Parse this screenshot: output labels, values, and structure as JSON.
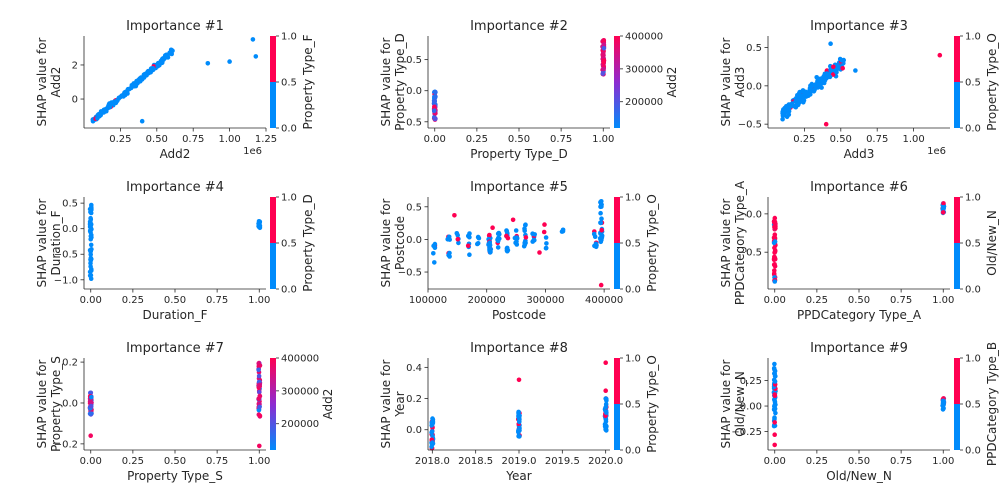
{
  "colors": {
    "low": "#008bfb",
    "mid": "#8e2bd0",
    "high": "#ff0052"
  },
  "chart_data": [
    {
      "type": "scatter",
      "title": "Importance #1",
      "xlabel": "Add2",
      "ylabel": [
        "SHAP value for",
        "Add2"
      ],
      "xlim": [
        0,
        1250000
      ],
      "ylim": [
        -1.7,
        3.7
      ],
      "xticks": [
        250000,
        500000,
        750000,
        1000000,
        1250000
      ],
      "xtick_labels": [
        "0.25",
        "0.50",
        "0.75",
        "1.00",
        "1.25"
      ],
      "x_offset": "1e6",
      "yticks": [
        0,
        2
      ],
      "ytick_labels": [
        "0",
        "2"
      ],
      "colorbar": {
        "label": "Property Type_F",
        "ticks": [
          0,
          0.5,
          1
        ],
        "tick_labels": [
          "0.0",
          "0.5",
          "1.0"
        ],
        "range": [
          0,
          1
        ],
        "binary": true
      },
      "points": {
        "mode": "linear",
        "x_range": [
          60000,
          620000
        ],
        "y_start": -1.3,
        "y_end": 2.9,
        "noise": 0.25,
        "n": 160,
        "high_frac": 0.05,
        "extra": [
          [
            850000,
            2.1,
            0
          ],
          [
            1000000,
            2.2,
            0
          ],
          [
            1160000,
            3.5,
            0
          ],
          [
            1180000,
            2.5,
            0
          ],
          [
            400000,
            -1.3,
            0
          ]
        ]
      }
    },
    {
      "type": "scatter",
      "title": "Importance #2",
      "xlabel": "Property Type_D",
      "ylabel": [
        "SHAP value for",
        "Property Type_D"
      ],
      "xlim": [
        -0.04,
        1.04
      ],
      "ylim": [
        -0.6,
        0.88
      ],
      "xticks": [
        0,
        0.25,
        0.5,
        0.75,
        1.0
      ],
      "xtick_labels": [
        "0.00",
        "0.25",
        "0.50",
        "0.75",
        "1.00"
      ],
      "yticks": [
        -0.5,
        0,
        0.5
      ],
      "ytick_labels": [
        "−0.5",
        "0.0",
        "0.5"
      ],
      "colorbar": {
        "label": "Add2",
        "ticks": [
          200000,
          300000,
          400000
        ],
        "tick_labels": [
          "200000",
          "300000",
          "400000"
        ],
        "range": [
          120000,
          400000
        ],
        "binary": false
      },
      "points": {
        "mode": "binary",
        "groups": [
          {
            "x": 0,
            "y_min": -0.5,
            "y_max": 0.0,
            "n": 45,
            "high_frac": 0.3
          },
          {
            "x": 1,
            "y_min": 0.25,
            "y_max": 0.82,
            "n": 45,
            "high_frac": 0.9
          }
        ]
      }
    },
    {
      "type": "scatter",
      "title": "Importance #3",
      "xlabel": "Add3",
      "ylabel": [
        "SHAP value for",
        "Add3"
      ],
      "xlim": [
        0,
        1250000
      ],
      "ylim": [
        -0.55,
        0.65
      ],
      "xticks": [
        250000,
        500000,
        750000,
        1000000
      ],
      "xtick_labels": [
        "0.25",
        "0.50",
        "0.75",
        "1.00"
      ],
      "x_offset": "1e6",
      "yticks": [
        -0.5,
        0,
        0.5
      ],
      "ytick_labels": [
        "−0.5",
        "0.0",
        "0.5"
      ],
      "colorbar": {
        "label": "Property Type_O",
        "ticks": [
          0,
          0.5,
          1
        ],
        "tick_labels": [
          "0.0",
          "0.5",
          "1.0"
        ],
        "range": [
          0,
          1
        ],
        "binary": true
      },
      "points": {
        "mode": "linear",
        "x_range": [
          100000,
          520000
        ],
        "y_start": -0.35,
        "y_end": 0.3,
        "noise": 0.14,
        "n": 190,
        "high_frac": 0.09,
        "extra": [
          [
            1180000,
            0.4,
            1
          ],
          [
            400000,
            -0.5,
            1
          ],
          [
            600000,
            0.2,
            0
          ],
          [
            430000,
            0.55,
            0
          ]
        ]
      }
    },
    {
      "type": "scatter",
      "title": "Importance #4",
      "xlabel": "Duration_F",
      "ylabel": [
        "SHAP value for",
        "Duration_F"
      ],
      "xlim": [
        -0.04,
        1.04
      ],
      "ylim": [
        -1.18,
        0.62
      ],
      "xticks": [
        0,
        0.25,
        0.5,
        0.75,
        1.0
      ],
      "xtick_labels": [
        "0.00",
        "0.25",
        "0.50",
        "0.75",
        "1.00"
      ],
      "yticks": [
        -1.0,
        -0.5,
        0,
        0.5
      ],
      "ytick_labels": [
        "−1.0",
        "−0.5",
        "0.0",
        "0.5"
      ],
      "colorbar": {
        "label": "Property Type_D",
        "ticks": [
          0,
          0.5,
          1
        ],
        "tick_labels": [
          "0.0",
          "0.5",
          "1.0"
        ],
        "range": [
          0,
          1
        ],
        "binary": true
      },
      "points": {
        "mode": "binary",
        "groups": [
          {
            "x": 0,
            "y_min": -1.1,
            "y_max": 0.52,
            "n": 45,
            "high_frac": 0.0
          },
          {
            "x": 1,
            "y_min": 0.0,
            "y_max": 0.15,
            "n": 18,
            "high_frac": 0.0
          }
        ]
      }
    },
    {
      "type": "scatter",
      "title": "Importance #5",
      "xlabel": "Postcode",
      "ylabel": [
        "SHAP value for",
        "Postcode"
      ],
      "xlim": [
        100000,
        410000
      ],
      "ylim": [
        -0.76,
        0.65
      ],
      "xticks": [
        100000,
        200000,
        300000,
        400000
      ],
      "xtick_labels": [
        "100000",
        "200000",
        "300000",
        "400000"
      ],
      "yticks": [
        -0.5,
        0,
        0.5
      ],
      "ytick_labels": [
        "−0.5",
        "0.0",
        "0.5"
      ],
      "colorbar": {
        "label": "Property Type_O",
        "ticks": [
          0,
          0.5,
          1
        ],
        "tick_labels": [
          "0.0",
          "0.5",
          "1.0"
        ],
        "range": [
          0,
          1
        ],
        "binary": true
      },
      "points": {
        "mode": "clusters",
        "groups": [
          {
            "x": 110000,
            "y_min": -0.4,
            "y_max": -0.05,
            "n": 6
          },
          {
            "x": 135000,
            "y_min": -0.3,
            "y_max": 0.05,
            "n": 8
          },
          {
            "x": 150000,
            "y_min": -0.1,
            "y_max": 0.1,
            "n": 5
          },
          {
            "x": 170000,
            "y_min": -0.25,
            "y_max": 0.1,
            "n": 8
          },
          {
            "x": 185000,
            "y_min": -0.1,
            "y_max": 0.1,
            "n": 5
          },
          {
            "x": 205000,
            "y_min": -0.2,
            "y_max": 0.08,
            "n": 22
          },
          {
            "x": 220000,
            "y_min": -0.15,
            "y_max": 0.1,
            "n": 10
          },
          {
            "x": 235000,
            "y_min": -0.2,
            "y_max": 0.18,
            "n": 12
          },
          {
            "x": 250000,
            "y_min": -0.1,
            "y_max": 0.15,
            "n": 10
          },
          {
            "x": 265000,
            "y_min": -0.2,
            "y_max": 0.25,
            "n": 12
          },
          {
            "x": 280000,
            "y_min": -0.05,
            "y_max": 0.1,
            "n": 8
          },
          {
            "x": 300000,
            "y_min": -0.15,
            "y_max": 0.25,
            "n": 6
          },
          {
            "x": 330000,
            "y_min": 0.05,
            "y_max": 0.3,
            "n": 3
          },
          {
            "x": 385000,
            "y_min": -0.15,
            "y_max": 0.15,
            "n": 8
          },
          {
            "x": 395000,
            "y_min": -0.1,
            "y_max": 0.6,
            "n": 25
          }
        ],
        "high_frac": 0.12,
        "extra": [
          [
            145000,
            0.37,
            1
          ],
          [
            290000,
            -0.2,
            1
          ],
          [
            395000,
            -0.7,
            1
          ],
          [
            245000,
            0.3,
            1
          ],
          [
            210000,
            0.18,
            1
          ]
        ]
      }
    },
    {
      "type": "scatter",
      "title": "Importance #6",
      "xlabel": "PPDCategory Type_A",
      "ylabel": [
        "SHAP value for",
        "PPDCategory Type_A"
      ],
      "xlim": [
        -0.04,
        1.04
      ],
      "ylim": [
        -0.98,
        0.22
      ],
      "xticks": [
        0,
        0.25,
        0.5,
        0.75,
        1.0
      ],
      "xtick_labels": [
        "0.00",
        "0.25",
        "0.50",
        "0.75",
        "1.00"
      ],
      "yticks": [
        -0.5,
        0
      ],
      "ytick_labels": [
        "−0.5",
        "0.0"
      ],
      "colorbar": {
        "label": "Old/New_N",
        "ticks": [
          0,
          0.5,
          1
        ],
        "tick_labels": [
          "0.0",
          "0.5",
          "1.0"
        ],
        "range": [
          0,
          1
        ],
        "binary": true
      },
      "points": {
        "mode": "binary",
        "groups": [
          {
            "x": 0,
            "y_min": -0.92,
            "y_max": -0.05,
            "n": 50,
            "high_frac": 0.7
          },
          {
            "x": 1,
            "y_min": 0.0,
            "y_max": 0.14,
            "n": 20,
            "high_frac": 0.2
          }
        ]
      }
    },
    {
      "type": "scatter",
      "title": "Importance #7",
      "xlabel": "Property Type_S",
      "ylabel": [
        "SHAP value for",
        "Property Type_S"
      ],
      "xlim": [
        -0.04,
        1.04
      ],
      "ylim": [
        -0.23,
        0.22
      ],
      "xticks": [
        0,
        0.25,
        0.5,
        0.75,
        1.0
      ],
      "xtick_labels": [
        "0.00",
        "0.25",
        "0.50",
        "0.75",
        "1.00"
      ],
      "yticks": [
        -0.2,
        0,
        0.2
      ],
      "ytick_labels": [
        "−0.2",
        "0.0",
        "0.2"
      ],
      "colorbar": {
        "label": "Add2",
        "ticks": [
          200000,
          300000,
          400000
        ],
        "tick_labels": [
          "200000",
          "300000",
          "400000"
        ],
        "range": [
          120000,
          400000
        ],
        "binary": false
      },
      "points": {
        "mode": "binary",
        "groups": [
          {
            "x": 0,
            "y_min": -0.06,
            "y_max": 0.05,
            "n": 45,
            "high_frac": 0.5
          },
          {
            "x": 1,
            "y_min": -0.08,
            "y_max": 0.2,
            "n": 45,
            "high_frac": 0.6
          }
        ],
        "extra": [
          [
            0,
            -0.16,
            1
          ],
          [
            1,
            -0.21,
            1
          ]
        ]
      }
    },
    {
      "type": "scatter",
      "title": "Importance #8",
      "xlabel": "Year",
      "ylabel": [
        "SHAP value for",
        "Year"
      ],
      "xlim": [
        2017.95,
        2020.05
      ],
      "ylim": [
        -0.13,
        0.46
      ],
      "xticks": [
        2018.0,
        2018.5,
        2019.0,
        2019.5,
        2020.0
      ],
      "xtick_labels": [
        "2018.0",
        "2018.5",
        "2019.0",
        "2019.5",
        "2020.0"
      ],
      "yticks": [
        0,
        0.2,
        0.4
      ],
      "ytick_labels": [
        "0.0",
        "0.2",
        "0.4"
      ],
      "colorbar": {
        "label": "Property Type_O",
        "ticks": [
          0,
          0.5,
          1
        ],
        "tick_labels": [
          "0.0",
          "0.5",
          "1.0"
        ],
        "range": [
          0,
          1
        ],
        "binary": true
      },
      "points": {
        "mode": "binary",
        "groups": [
          {
            "x": 2018,
            "y_min": -0.12,
            "y_max": 0.08,
            "n": 40,
            "high_frac": 0.3
          },
          {
            "x": 2019,
            "y_min": -0.05,
            "y_max": 0.12,
            "n": 35,
            "high_frac": 0.2
          },
          {
            "x": 2020,
            "y_min": -0.02,
            "y_max": 0.2,
            "n": 40,
            "high_frac": 0.15
          }
        ],
        "extra": [
          [
            2019,
            0.32,
            1
          ],
          [
            2020,
            0.43,
            1
          ],
          [
            2020,
            0.25,
            1
          ]
        ]
      }
    },
    {
      "type": "scatter",
      "title": "Importance #9",
      "xlabel": "Old/New_N",
      "ylabel": [
        "SHAP value for",
        "Old/New_N"
      ],
      "xlim": [
        -0.04,
        1.04
      ],
      "ylim": [
        -0.43,
        0.47
      ],
      "xticks": [
        0,
        0.25,
        0.5,
        0.75,
        1.0
      ],
      "xtick_labels": [
        "0.00",
        "0.25",
        "0.50",
        "0.75",
        "1.00"
      ],
      "yticks": [
        -0.25,
        0,
        0.25
      ],
      "ytick_labels": [
        "−0.25",
        "0.00",
        "0.25"
      ],
      "colorbar": {
        "label": "PPDCategory Type_B",
        "ticks": [
          0,
          0.5,
          1
        ],
        "tick_labels": [
          "0.0",
          "0.5",
          "1.0"
        ],
        "range": [
          0,
          1
        ],
        "binary": true
      },
      "points": {
        "mode": "binary",
        "groups": [
          {
            "x": 0,
            "y_min": -0.2,
            "y_max": 0.42,
            "n": 45,
            "high_frac": 0.1
          },
          {
            "x": 1,
            "y_min": -0.05,
            "y_max": 0.08,
            "n": 20,
            "high_frac": 0.3
          }
        ],
        "extra": [
          [
            0,
            -0.28,
            1
          ],
          [
            0,
            -0.38,
            1
          ],
          [
            0,
            -0.16,
            1
          ]
        ]
      }
    }
  ]
}
